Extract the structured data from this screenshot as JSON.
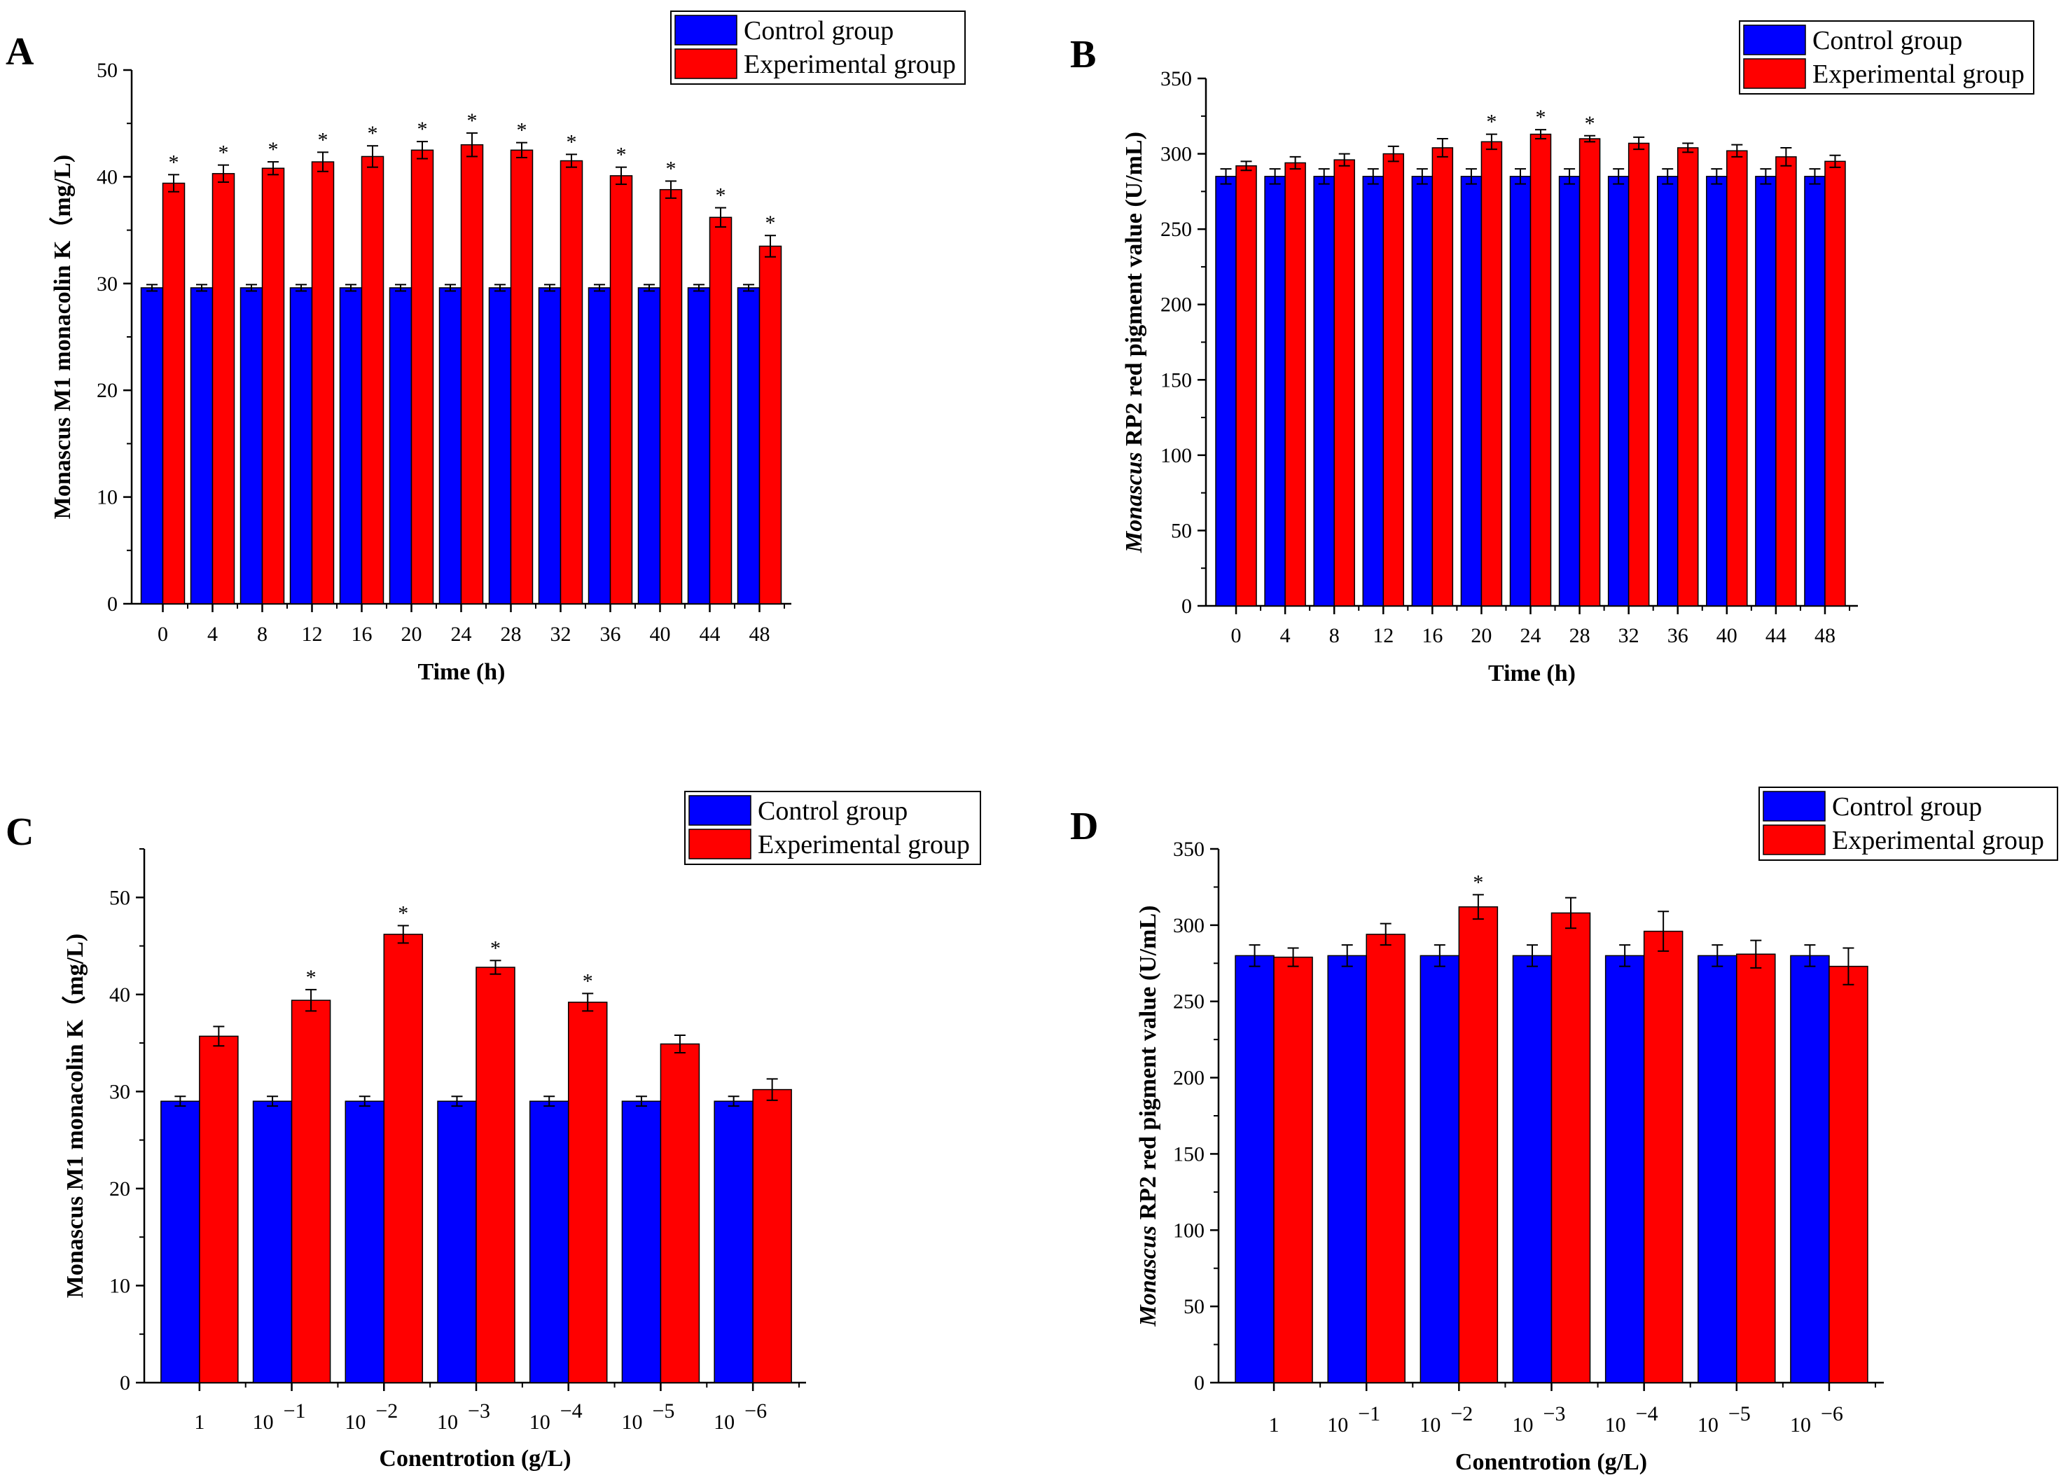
{
  "colors": {
    "control": "#0000ff",
    "experimental": "#ff0000",
    "axis": "#000000"
  },
  "chart_data": [
    {
      "panel": "A",
      "type": "bar",
      "xlabel": "Time (h)",
      "ylabel": "Monascus M1 monacolin K（mg/L)",
      "ylabel_italic_prefix": "",
      "ylim": [
        0,
        50
      ],
      "yticks": [
        0,
        10,
        20,
        30,
        40,
        50
      ],
      "legend_position": "top-right",
      "categories": [
        {
          "base": "0",
          "exp": ""
        },
        {
          "base": "4",
          "exp": ""
        },
        {
          "base": "8",
          "exp": ""
        },
        {
          "base": "12",
          "exp": ""
        },
        {
          "base": "16",
          "exp": ""
        },
        {
          "base": "20",
          "exp": ""
        },
        {
          "base": "24",
          "exp": ""
        },
        {
          "base": "28",
          "exp": ""
        },
        {
          "base": "32",
          "exp": ""
        },
        {
          "base": "36",
          "exp": ""
        },
        {
          "base": "40",
          "exp": ""
        },
        {
          "base": "44",
          "exp": ""
        },
        {
          "base": "48",
          "exp": ""
        }
      ],
      "series": [
        {
          "name": "Control group",
          "values": [
            29.6,
            29.6,
            29.6,
            29.6,
            29.6,
            29.6,
            29.6,
            29.6,
            29.6,
            29.6,
            29.6,
            29.6,
            29.6
          ],
          "errors": [
            0.3,
            0.3,
            0.3,
            0.3,
            0.3,
            0.3,
            0.3,
            0.3,
            0.3,
            0.3,
            0.3,
            0.3,
            0.3
          ]
        },
        {
          "name": "Experimental group",
          "values": [
            39.4,
            40.3,
            40.8,
            41.4,
            41.9,
            42.5,
            43.0,
            42.5,
            41.5,
            40.1,
            38.8,
            36.2,
            33.5
          ],
          "errors": [
            0.8,
            0.8,
            0.6,
            0.9,
            1.0,
            0.8,
            1.1,
            0.7,
            0.6,
            0.8,
            0.8,
            0.9,
            1.0
          ]
        }
      ],
      "significant": [
        true,
        true,
        true,
        true,
        true,
        true,
        true,
        true,
        true,
        true,
        true,
        true,
        true
      ],
      "significance_mark": "*"
    },
    {
      "panel": "B",
      "type": "bar",
      "xlabel": "Time (h)",
      "ylabel": " RP2 red pigment value (U/mL)",
      "ylabel_italic_prefix": "Monascus",
      "ylim": [
        0,
        350
      ],
      "yticks": [
        0,
        50,
        100,
        150,
        200,
        250,
        300,
        350
      ],
      "legend_position": "top-right",
      "categories": [
        {
          "base": "0",
          "exp": ""
        },
        {
          "base": "4",
          "exp": ""
        },
        {
          "base": "8",
          "exp": ""
        },
        {
          "base": "12",
          "exp": ""
        },
        {
          "base": "16",
          "exp": ""
        },
        {
          "base": "20",
          "exp": ""
        },
        {
          "base": "24",
          "exp": ""
        },
        {
          "base": "28",
          "exp": ""
        },
        {
          "base": "32",
          "exp": ""
        },
        {
          "base": "36",
          "exp": ""
        },
        {
          "base": "40",
          "exp": ""
        },
        {
          "base": "44",
          "exp": ""
        },
        {
          "base": "48",
          "exp": ""
        }
      ],
      "series": [
        {
          "name": "Control group",
          "values": [
            285,
            285,
            285,
            285,
            285,
            285,
            285,
            285,
            285,
            285,
            285,
            285,
            285
          ],
          "errors": [
            5,
            5,
            5,
            5,
            5,
            5,
            5,
            5,
            5,
            5,
            5,
            5,
            5
          ]
        },
        {
          "name": "Experimental group",
          "values": [
            292,
            294,
            296,
            300,
            304,
            308,
            313,
            310,
            307,
            304,
            302,
            298,
            295
          ],
          "errors": [
            3,
            4,
            4,
            5,
            6,
            5,
            3,
            2,
            4,
            3,
            4,
            6,
            4
          ]
        }
      ],
      "significant": [
        false,
        false,
        false,
        false,
        false,
        true,
        true,
        true,
        false,
        false,
        false,
        false,
        false
      ],
      "significance_mark": "*"
    },
    {
      "panel": "C",
      "type": "bar",
      "xlabel": "Conentrotion (g/L)",
      "ylabel": "Monascus M1 monacolin K（mg/L)",
      "ylabel_italic_prefix": "",
      "ylim": [
        0,
        55
      ],
      "yticks": [
        0,
        10,
        20,
        30,
        40,
        50
      ],
      "legend_position": "top-right",
      "categories": [
        {
          "base": "1",
          "exp": ""
        },
        {
          "base": "10",
          "exp": "−1"
        },
        {
          "base": "10",
          "exp": "−2"
        },
        {
          "base": "10",
          "exp": "−3"
        },
        {
          "base": "10",
          "exp": "−4"
        },
        {
          "base": "10",
          "exp": "−5"
        },
        {
          "base": "10",
          "exp": "−6"
        }
      ],
      "series": [
        {
          "name": "Control group",
          "values": [
            29.0,
            29.0,
            29.0,
            29.0,
            29.0,
            29.0,
            29.0
          ],
          "errors": [
            0.5,
            0.5,
            0.5,
            0.5,
            0.5,
            0.5,
            0.5
          ]
        },
        {
          "name": "Experimental group",
          "values": [
            35.7,
            39.4,
            46.2,
            42.8,
            39.2,
            34.9,
            30.2
          ],
          "errors": [
            1.0,
            1.1,
            0.9,
            0.7,
            0.9,
            0.9,
            1.1
          ]
        }
      ],
      "significant": [
        false,
        true,
        true,
        true,
        true,
        false,
        false
      ],
      "significance_mark": "*"
    },
    {
      "panel": "D",
      "type": "bar",
      "xlabel": "Conentrotion (g/L)",
      "ylabel": " RP2 red pigment value (U/mL)",
      "ylabel_italic_prefix": "Monascus",
      "ylim": [
        0,
        350
      ],
      "yticks": [
        0,
        50,
        100,
        150,
        200,
        250,
        300,
        350
      ],
      "legend_position": "top-right",
      "categories": [
        {
          "base": "1",
          "exp": ""
        },
        {
          "base": "10",
          "exp": "−1"
        },
        {
          "base": "10",
          "exp": "−2"
        },
        {
          "base": "10",
          "exp": "−3"
        },
        {
          "base": "10",
          "exp": "−4"
        },
        {
          "base": "10",
          "exp": "−5"
        },
        {
          "base": "10",
          "exp": "−6"
        }
      ],
      "series": [
        {
          "name": "Control group",
          "values": [
            280,
            280,
            280,
            280,
            280,
            280,
            280
          ],
          "errors": [
            7,
            7,
            7,
            7,
            7,
            7,
            7
          ]
        },
        {
          "name": "Experimental group",
          "values": [
            279,
            294,
            312,
            308,
            296,
            281,
            273
          ],
          "errors": [
            6,
            7,
            8,
            10,
            13,
            9,
            12
          ]
        }
      ],
      "significant": [
        false,
        false,
        true,
        false,
        false,
        false,
        false
      ],
      "significance_mark": "*"
    }
  ]
}
